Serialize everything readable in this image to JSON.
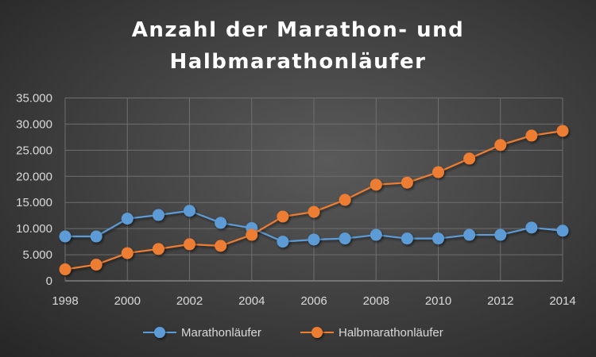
{
  "chart_data": {
    "type": "line",
    "title_lines": [
      "Anzahl der Marathon- und",
      "Halbmarathonläufer"
    ],
    "x": [
      1998,
      1999,
      2000,
      2001,
      2002,
      2003,
      2004,
      2005,
      2006,
      2007,
      2008,
      2009,
      2010,
      2011,
      2012,
      2013,
      2014
    ],
    "x_ticks": [
      "1998",
      "2000",
      "2002",
      "2004",
      "2006",
      "2008",
      "2010",
      "2012",
      "2014"
    ],
    "y_ticks": [
      "0",
      "5.000",
      "10.000",
      "15.000",
      "20.000",
      "25.000",
      "30.000",
      "35.000"
    ],
    "ylim": [
      0,
      35000
    ],
    "xlim": [
      1998,
      2014
    ],
    "grid": true,
    "legend": "bottom",
    "series": [
      {
        "name": "Marathonläufer",
        "color": "#5b9bd5",
        "values": [
          8500,
          8500,
          11900,
          12600,
          13400,
          11100,
          10100,
          7500,
          7900,
          8100,
          8800,
          8100,
          8100,
          8800,
          8800,
          10200,
          9600
        ]
      },
      {
        "name": "Halbmarathonläufer",
        "color": "#ed7d31",
        "values": [
          2200,
          3100,
          5300,
          6100,
          7000,
          6700,
          8800,
          12300,
          13200,
          15500,
          18400,
          18800,
          20800,
          23400,
          26000,
          27800,
          28700
        ]
      }
    ]
  }
}
